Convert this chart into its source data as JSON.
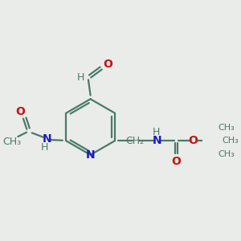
{
  "bg_color": "#eaece9",
  "bond_color": "#4a7a6a",
  "atom_colors": {
    "N": "#1a1acc",
    "O": "#cc1111",
    "C": "#4a7a6a"
  },
  "figsize": [
    3.0,
    3.0
  ],
  "dpi": 100,
  "xlim": [
    -1.6,
    1.9
  ],
  "ylim": [
    -1.7,
    1.5
  ]
}
